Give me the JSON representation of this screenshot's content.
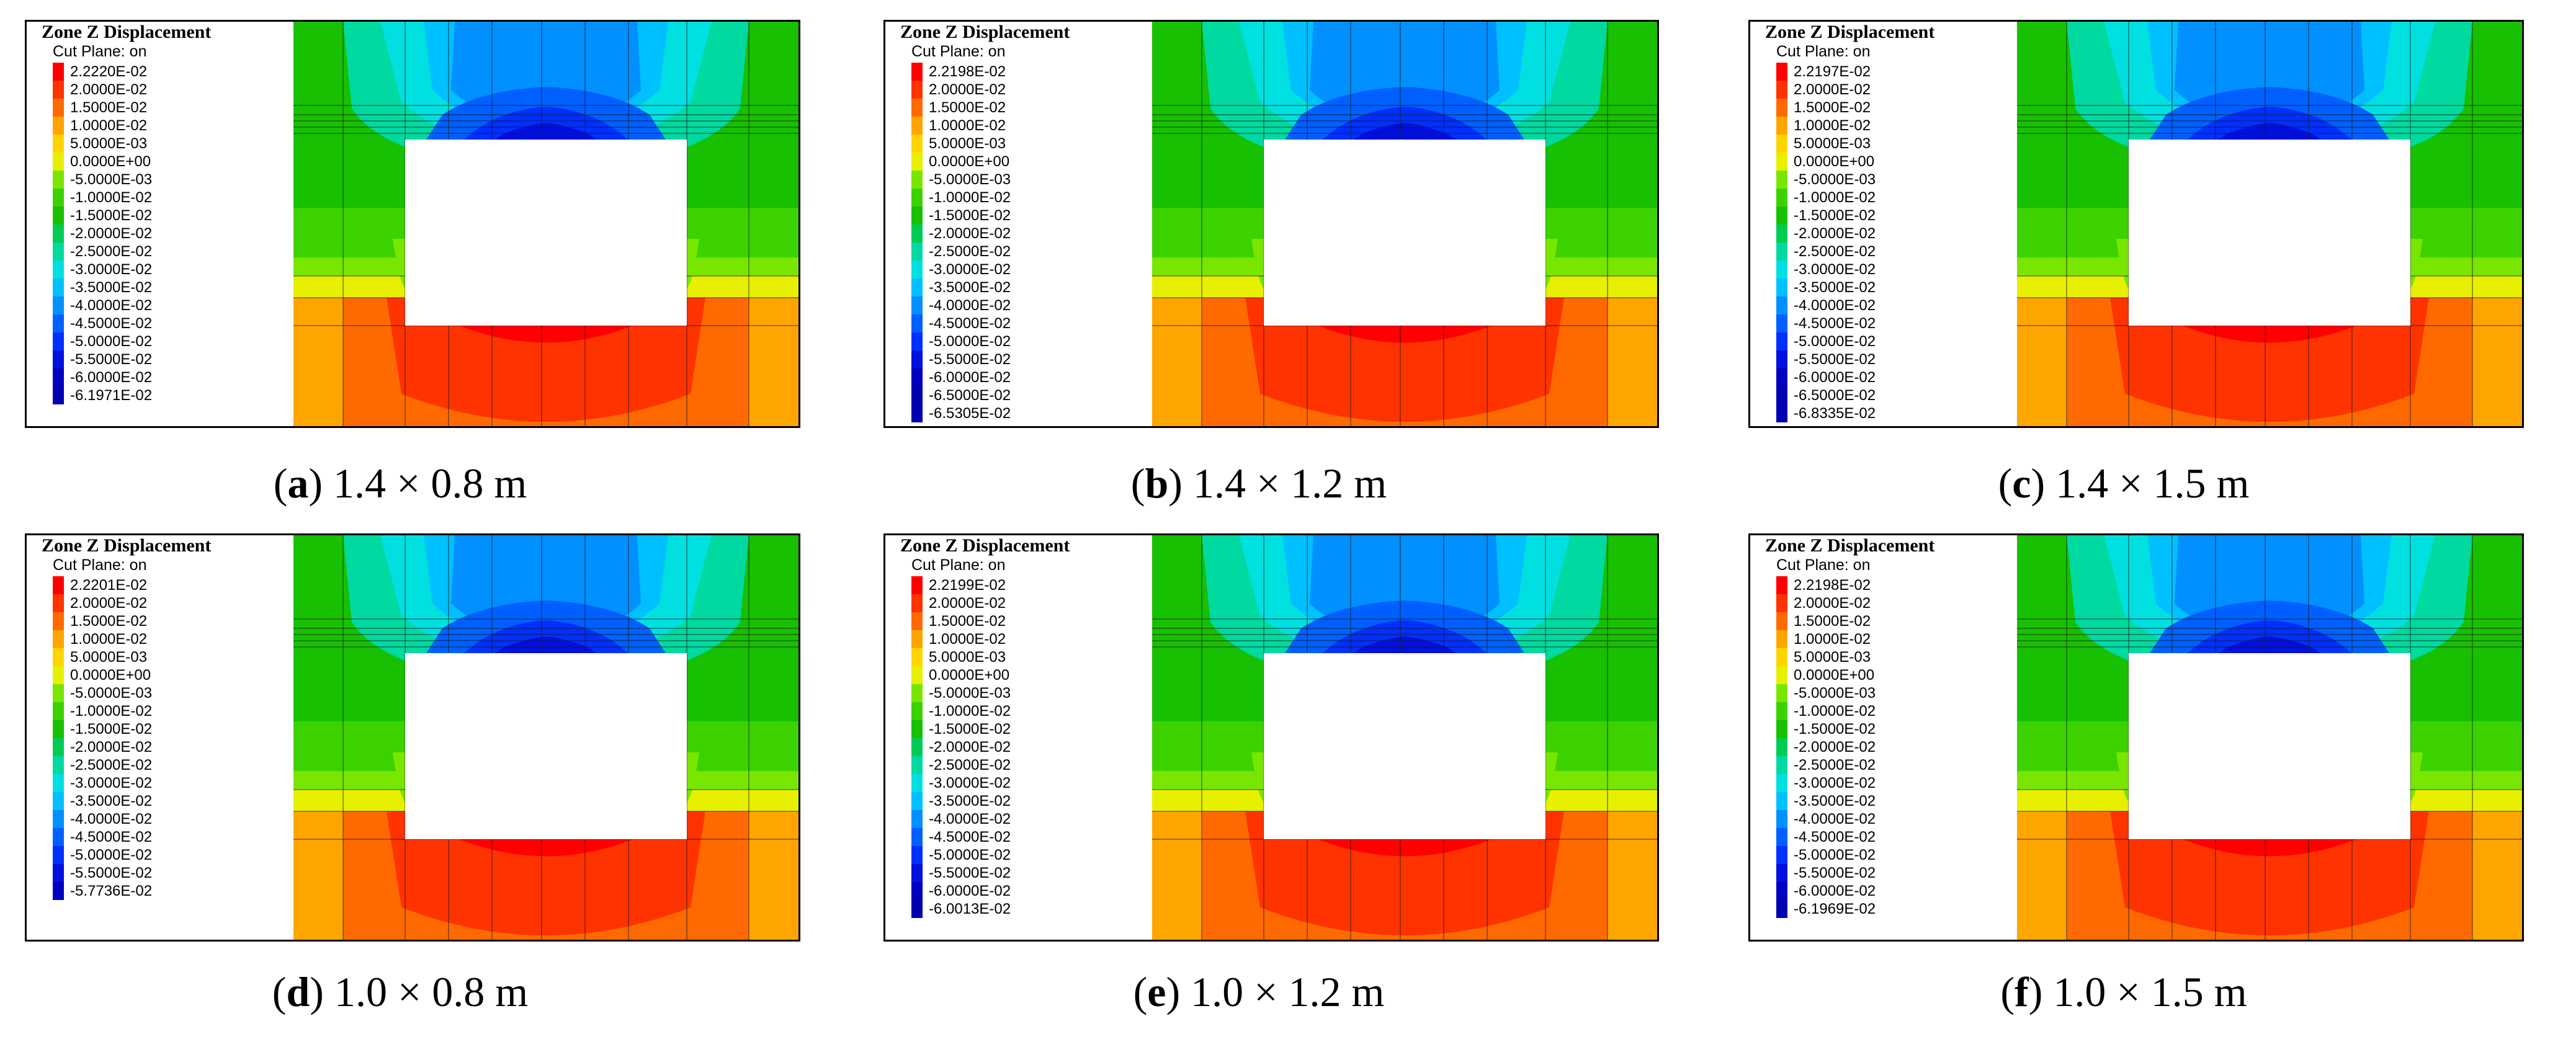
{
  "figure": {
    "legend_title": "Zone Z Displacement",
    "legend_subtitle": "Cut Plane: on",
    "common_levels": [
      "2.0000E-02",
      "1.5000E-02",
      "1.0000E-02",
      "5.0000E-03",
      "0.0000E+00",
      "-5.0000E-03",
      "-1.0000E-02",
      "-1.5000E-02",
      "-2.0000E-02",
      "-2.5000E-02",
      "-3.0000E-02",
      "-3.5000E-02",
      "-4.0000E-02",
      "-4.5000E-02",
      "-5.0000E-02",
      "-5.5000E-02"
    ],
    "colors": [
      "#ff0000",
      "#ff3300",
      "#ff6a00",
      "#ffa500",
      "#ffd500",
      "#e6f000",
      "#78e600",
      "#3cd200",
      "#17c000",
      "#00cc55",
      "#00d9a0",
      "#00e0e0",
      "#00c0ff",
      "#0090ff",
      "#0060ff",
      "#0030ff",
      "#0010e0",
      "#0000c0",
      "#0000b0"
    ],
    "panels": [
      {
        "letter": "a",
        "size": "1.4 × 0.8 m",
        "max": "2.2220E-02",
        "extra": [
          "-6.0000E-02"
        ],
        "min": "-6.1971E-02"
      },
      {
        "letter": "b",
        "size": "1.4 × 1.2 m",
        "max": "2.2198E-02",
        "extra": [
          "-6.0000E-02",
          "-6.5000E-02"
        ],
        "min": "-6.5305E-02"
      },
      {
        "letter": "c",
        "size": "1.4 × 1.5 m",
        "max": "2.2197E-02",
        "extra": [
          "-6.0000E-02",
          "-6.5000E-02"
        ],
        "min": "-6.8335E-02"
      },
      {
        "letter": "d",
        "size": "1.0 × 0.8 m",
        "max": "2.2201E-02",
        "extra": [],
        "min": "-5.7736E-02"
      },
      {
        "letter": "e",
        "size": "1.0 × 1.2 m",
        "max": "2.2199E-02",
        "extra": [
          "-6.0000E-02"
        ],
        "min": "-6.0013E-02"
      },
      {
        "letter": "f",
        "size": "1.0 × 1.5 m",
        "max": "2.2198E-02",
        "extra": [
          "-6.0000E-02"
        ],
        "min": "-6.1969E-02"
      }
    ]
  }
}
